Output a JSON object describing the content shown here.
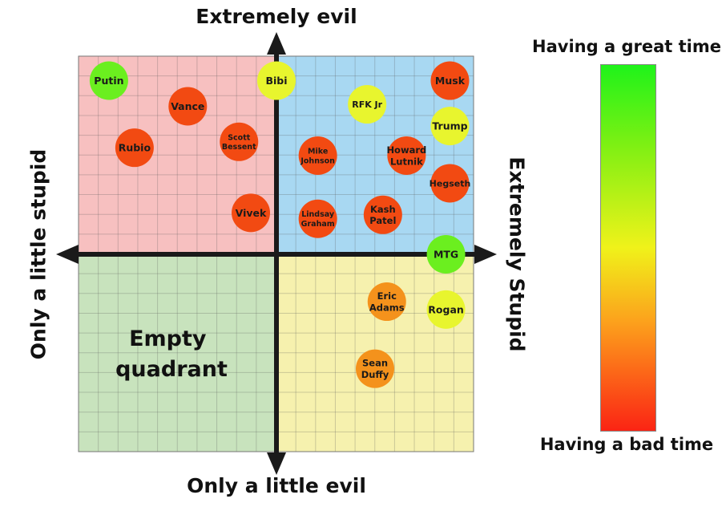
{
  "axes": {
    "top": "Extremely evil",
    "bottom": "Only a little evil",
    "left": "Only a little stupid",
    "right": "Extremely Stupid"
  },
  "quadrant_text": [
    "Empty",
    "quadrant"
  ],
  "legend": {
    "top": "Having a great time",
    "bottom": "Having a bad time",
    "colors": [
      "#1ff31a",
      "#7ef013",
      "#f0f21a",
      "#fca21c",
      "#fb2414"
    ]
  },
  "colors": {
    "q_top_left": "#f7c0c0",
    "q_top_right": "#a8d8f2",
    "q_bottom_left": "#c8e3bd",
    "q_bottom_right": "#f6f1ae",
    "dot_red": "#f24a12",
    "dot_orange": "#f4921c",
    "dot_yellow": "#e8f52e",
    "dot_green": "#6bef1f"
  },
  "people": [
    {
      "id": "putin",
      "label": [
        "Putin"
      ],
      "stupid": -8.5,
      "evil": 8.8,
      "mood": "green"
    },
    {
      "id": "vance",
      "label": [
        "Vance"
      ],
      "stupid": -4.5,
      "evil": 7.5,
      "mood": "red"
    },
    {
      "id": "rubio",
      "label": [
        "Rubio"
      ],
      "stupid": -7.2,
      "evil": 5.4,
      "mood": "red"
    },
    {
      "id": "scott-bessent",
      "label": [
        "Scott",
        "Bessent"
      ],
      "stupid": -1.9,
      "evil": 5.7,
      "mood": "red"
    },
    {
      "id": "vivek",
      "label": [
        "Vivek"
      ],
      "stupid": -1.3,
      "evil": 2.1,
      "mood": "red"
    },
    {
      "id": "bibi",
      "label": [
        "Bibi"
      ],
      "stupid": 0.0,
      "evil": 8.8,
      "mood": "yellow"
    },
    {
      "id": "rfk-jr",
      "label": [
        "RFK Jr"
      ],
      "stupid": 4.6,
      "evil": 7.6,
      "mood": "yellow"
    },
    {
      "id": "musk",
      "label": [
        "Musk"
      ],
      "stupid": 8.8,
      "evil": 8.8,
      "mood": "red"
    },
    {
      "id": "trump",
      "label": [
        "Trump"
      ],
      "stupid": 8.8,
      "evil": 6.5,
      "mood": "yellow"
    },
    {
      "id": "mike-johnson",
      "label": [
        "Mike",
        "Johnson"
      ],
      "stupid": 2.1,
      "evil": 5.0,
      "mood": "red"
    },
    {
      "id": "howard-lutnik",
      "label": [
        "Howard",
        "Lutnik"
      ],
      "stupid": 6.6,
      "evil": 5.0,
      "mood": "red"
    },
    {
      "id": "hegseth",
      "label": [
        "Hegseth"
      ],
      "stupid": 8.8,
      "evil": 3.6,
      "mood": "red"
    },
    {
      "id": "lindsay-graham",
      "label": [
        "Lindsay",
        "Graham"
      ],
      "stupid": 2.1,
      "evil": 1.8,
      "mood": "red"
    },
    {
      "id": "kash-patel",
      "label": [
        "Kash",
        "Patel"
      ],
      "stupid": 5.4,
      "evil": 2.0,
      "mood": "red"
    },
    {
      "id": "mtg",
      "label": [
        "MTG"
      ],
      "stupid": 8.6,
      "evil": 0.0,
      "mood": "green"
    },
    {
      "id": "eric-adams",
      "label": [
        "Eric",
        "Adams"
      ],
      "stupid": 5.6,
      "evil": -2.4,
      "mood": "orange"
    },
    {
      "id": "rogan",
      "label": [
        "Rogan"
      ],
      "stupid": 8.6,
      "evil": -2.8,
      "mood": "yellow"
    },
    {
      "id": "sean-duffy",
      "label": [
        "Sean",
        "Duffy"
      ],
      "stupid": 5.0,
      "evil": -5.8,
      "mood": "orange"
    }
  ]
}
